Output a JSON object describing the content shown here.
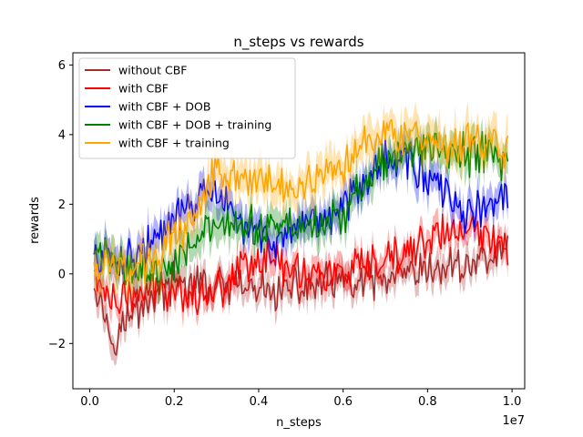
{
  "chart_data": {
    "type": "line",
    "title": "n_steps vs rewards",
    "xlabel": "n_steps",
    "ylabel": "rewards",
    "x_scale_label": "1e7",
    "xlim": [
      -0.04,
      1.03
    ],
    "ylim": [
      -3.3,
      6.35
    ],
    "x_ticks": [
      0.0,
      0.2,
      0.4,
      0.6,
      0.8,
      1.0
    ],
    "x_tick_labels": [
      "0.0",
      "0.2",
      "0.4",
      "0.6",
      "0.8",
      "1.0"
    ],
    "y_ticks": [
      -2,
      0,
      2,
      4,
      6
    ],
    "y_tick_labels": [
      "−2",
      "0",
      "2",
      "4",
      "6"
    ],
    "grid": false,
    "legend_position": "top-left",
    "x": [
      0.01,
      0.05,
      0.1,
      0.15,
      0.2,
      0.25,
      0.3,
      0.35,
      0.4,
      0.45,
      0.5,
      0.55,
      0.6,
      0.65,
      0.7,
      0.75,
      0.8,
      0.85,
      0.9,
      0.95,
      0.99
    ],
    "series": [
      {
        "name": "without CBF",
        "color": "#a52a2a",
        "band": 0.35,
        "values": [
          0.0,
          -1.8,
          -1.2,
          -0.6,
          -0.3,
          -0.3,
          -0.4,
          -0.4,
          -0.5,
          -0.5,
          -0.4,
          -0.3,
          -0.3,
          -0.3,
          -0.2,
          -0.1,
          0.0,
          0.2,
          0.3,
          0.5,
          0.7
        ]
      },
      {
        "name": "with CBF",
        "color": "#ff0000",
        "band": 0.35,
        "values": [
          0.0,
          -0.8,
          -0.7,
          -0.4,
          -0.4,
          -0.6,
          -0.5,
          0.2,
          0.5,
          0.3,
          0.1,
          0.0,
          0.0,
          0.1,
          0.3,
          0.6,
          1.0,
          1.2,
          1.2,
          1.0,
          0.9
        ]
      },
      {
        "name": "with CBF + DOB",
        "color": "#0000ff",
        "band": 0.4,
        "values": [
          0.5,
          0.4,
          0.5,
          0.9,
          1.5,
          2.1,
          2.3,
          1.5,
          1.1,
          1.0,
          1.1,
          1.5,
          1.9,
          2.8,
          3.3,
          3.3,
          2.8,
          2.1,
          1.7,
          2.0,
          2.2
        ]
      },
      {
        "name": "with CBF + DOB + training",
        "color": "#008000",
        "band": 0.45,
        "values": [
          0.6,
          0.4,
          0.2,
          0.0,
          0.4,
          1.1,
          1.3,
          1.3,
          1.3,
          1.4,
          1.4,
          1.5,
          1.6,
          2.7,
          3.2,
          3.5,
          3.6,
          3.5,
          3.4,
          3.5,
          3.2
        ]
      },
      {
        "name": "with CBF + training",
        "color": "#ffa500",
        "band": 0.5,
        "values": [
          0.3,
          0.1,
          0.2,
          0.4,
          1.1,
          1.7,
          3.2,
          2.8,
          2.7,
          2.4,
          2.6,
          2.9,
          3.2,
          3.9,
          4.2,
          4.0,
          3.6,
          3.5,
          3.8,
          3.8,
          3.6
        ]
      }
    ]
  }
}
